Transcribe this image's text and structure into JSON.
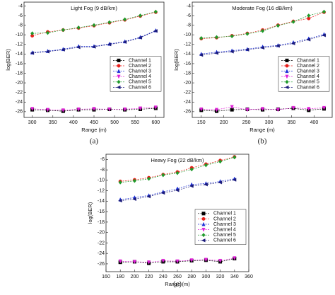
{
  "chart_data": [
    {
      "type": "line",
      "title": "Light Fog (9 dB/km)",
      "caption": "(a)",
      "x_label": "Range (m)",
      "y_label": "log(BER)",
      "x": [
        300,
        337.5,
        375,
        412.5,
        450,
        487.5,
        525,
        562.5,
        600
      ],
      "xlim": [
        280,
        620
      ],
      "xticks": [
        300,
        350,
        400,
        450,
        500,
        550,
        600
      ],
      "ylim": [
        -27.2,
        -3.2
      ],
      "yticks": [
        -4,
        -6,
        -8,
        -10,
        -12,
        -14,
        -16,
        -18,
        -20,
        -22,
        -24,
        -26
      ],
      "legend": "right",
      "series": [
        {
          "name": "Channel 1",
          "color": "#000000",
          "values": [
            -25.6,
            -25.7,
            -25.9,
            -25.6,
            -25.6,
            -25.5,
            -25.6,
            -25.5,
            -25.3
          ]
        },
        {
          "name": "Channel 2",
          "color": "#e8201c",
          "values": [
            -10.2,
            -9.4,
            -9.0,
            -8.6,
            -8.1,
            -7.5,
            -6.9,
            -6.1,
            -5.3
          ]
        },
        {
          "name": "Channel 3",
          "color": "#1b2fd6",
          "values": [
            -13.7,
            -13.4,
            -13.0,
            -12.4,
            -12.4,
            -11.9,
            -11.4,
            -10.5,
            -9.1
          ]
        },
        {
          "name": "Channel 4",
          "color": "#e020d8",
          "values": [
            -25.4,
            -25.6,
            -25.7,
            -25.5,
            -25.4,
            -25.5,
            -25.5,
            -25.3,
            -25.1
          ]
        },
        {
          "name": "Channel 5",
          "color": "#1e9a2a",
          "values": [
            -9.7,
            -9.6,
            -9.0,
            -8.5,
            -8.0,
            -7.4,
            -6.8,
            -6.0,
            -5.2
          ]
        },
        {
          "name": "Channel 6",
          "color": "#1a1a7a",
          "values": [
            -13.8,
            -13.5,
            -13.1,
            -12.6,
            -12.5,
            -12.0,
            -11.5,
            -10.6,
            -9.2
          ]
        }
      ]
    },
    {
      "type": "line",
      "title": "Moderate Fog (16 dB/km)",
      "caption": "(b)",
      "x_label": "Range (m)",
      "y_label": "log(BER)",
      "x": [
        150,
        184,
        218,
        252,
        286,
        320,
        354,
        388,
        422
      ],
      "xlim": [
        130,
        440
      ],
      "xticks": [
        150,
        200,
        250,
        300,
        350,
        400
      ],
      "ylim": [
        -27.2,
        -3.2
      ],
      "yticks": [
        -4,
        -6,
        -8,
        -10,
        -12,
        -14,
        -16,
        -18,
        -20,
        -22,
        -24,
        -26
      ],
      "legend": "right",
      "series": [
        {
          "name": "Channel 1",
          "color": "#000000",
          "values": [
            -25.7,
            -25.9,
            -25.6,
            -25.5,
            -25.6,
            -25.5,
            -25.3,
            -25.7,
            -25.4
          ]
        },
        {
          "name": "Channel 2",
          "color": "#e8201c",
          "values": [
            -10.8,
            -10.6,
            -10.2,
            -9.7,
            -9.0,
            -8.0,
            -7.2,
            -6.6,
            -5.3
          ]
        },
        {
          "name": "Channel 3",
          "color": "#1b2fd6",
          "values": [
            -14.0,
            -13.6,
            -13.3,
            -13.0,
            -12.5,
            -12.2,
            -11.6,
            -10.8,
            -9.9
          ]
        },
        {
          "name": "Channel 4",
          "color": "#e020d8",
          "values": [
            -25.5,
            -25.6,
            -25.0,
            -25.6,
            -25.4,
            -25.6,
            -25.2,
            -25.4,
            -25.2
          ]
        },
        {
          "name": "Channel 5",
          "color": "#1e9a2a",
          "values": [
            -10.7,
            -10.5,
            -10.3,
            -9.8,
            -9.2,
            -8.1,
            -7.3,
            -6.0,
            -5.2
          ]
        },
        {
          "name": "Channel 6",
          "color": "#1a1a7a",
          "values": [
            -14.2,
            -13.8,
            -13.5,
            -13.1,
            -12.7,
            -12.3,
            -11.8,
            -11.0,
            -10.1
          ]
        }
      ]
    },
    {
      "type": "line",
      "title": "Heavy Fog (22 dB/km)",
      "caption": "(c)",
      "x_label": "Range (m)",
      "y_label": "log(BER)",
      "x": [
        180,
        200,
        220,
        240,
        260,
        280,
        300,
        320,
        340
      ],
      "xlim": [
        160,
        360
      ],
      "xticks": [
        160,
        180,
        200,
        220,
        240,
        260,
        280,
        300,
        320,
        340,
        360
      ],
      "ylim": [
        -27.5,
        -5
      ],
      "yticks": [
        -6,
        -8,
        -10,
        -12,
        -14,
        -16,
        -18,
        -20,
        -22,
        -24,
        -26
      ],
      "legend": "right",
      "series": [
        {
          "name": "Channel 1",
          "color": "#000000",
          "values": [
            -25.7,
            -25.6,
            -25.9,
            -25.6,
            -25.6,
            -25.4,
            -25.3,
            -25.6,
            -25.0
          ]
        },
        {
          "name": "Channel 2",
          "color": "#e8201c",
          "values": [
            -10.2,
            -9.9,
            -9.5,
            -8.9,
            -8.4,
            -7.6,
            -6.9,
            -6.2,
            -5.5
          ]
        },
        {
          "name": "Channel 3",
          "color": "#1b2fd6",
          "values": [
            -13.7,
            -13.3,
            -12.9,
            -12.2,
            -11.6,
            -10.8,
            -10.6,
            -10.2,
            -9.7
          ]
        },
        {
          "name": "Channel 4",
          "color": "#e020d8",
          "values": [
            -25.5,
            -25.6,
            -25.7,
            -25.4,
            -25.5,
            -25.3,
            -25.2,
            -25.4,
            -24.9
          ]
        },
        {
          "name": "Channel 5",
          "color": "#1e9a2a",
          "values": [
            -10.4,
            -10.1,
            -9.7,
            -9.0,
            -8.6,
            -7.9,
            -7.1,
            -6.4,
            -5.6
          ]
        },
        {
          "name": "Channel 6",
          "color": "#1a1a7a",
          "values": [
            -13.9,
            -13.6,
            -13.1,
            -12.4,
            -11.9,
            -11.1,
            -10.8,
            -10.4,
            -9.9
          ]
        }
      ]
    }
  ]
}
